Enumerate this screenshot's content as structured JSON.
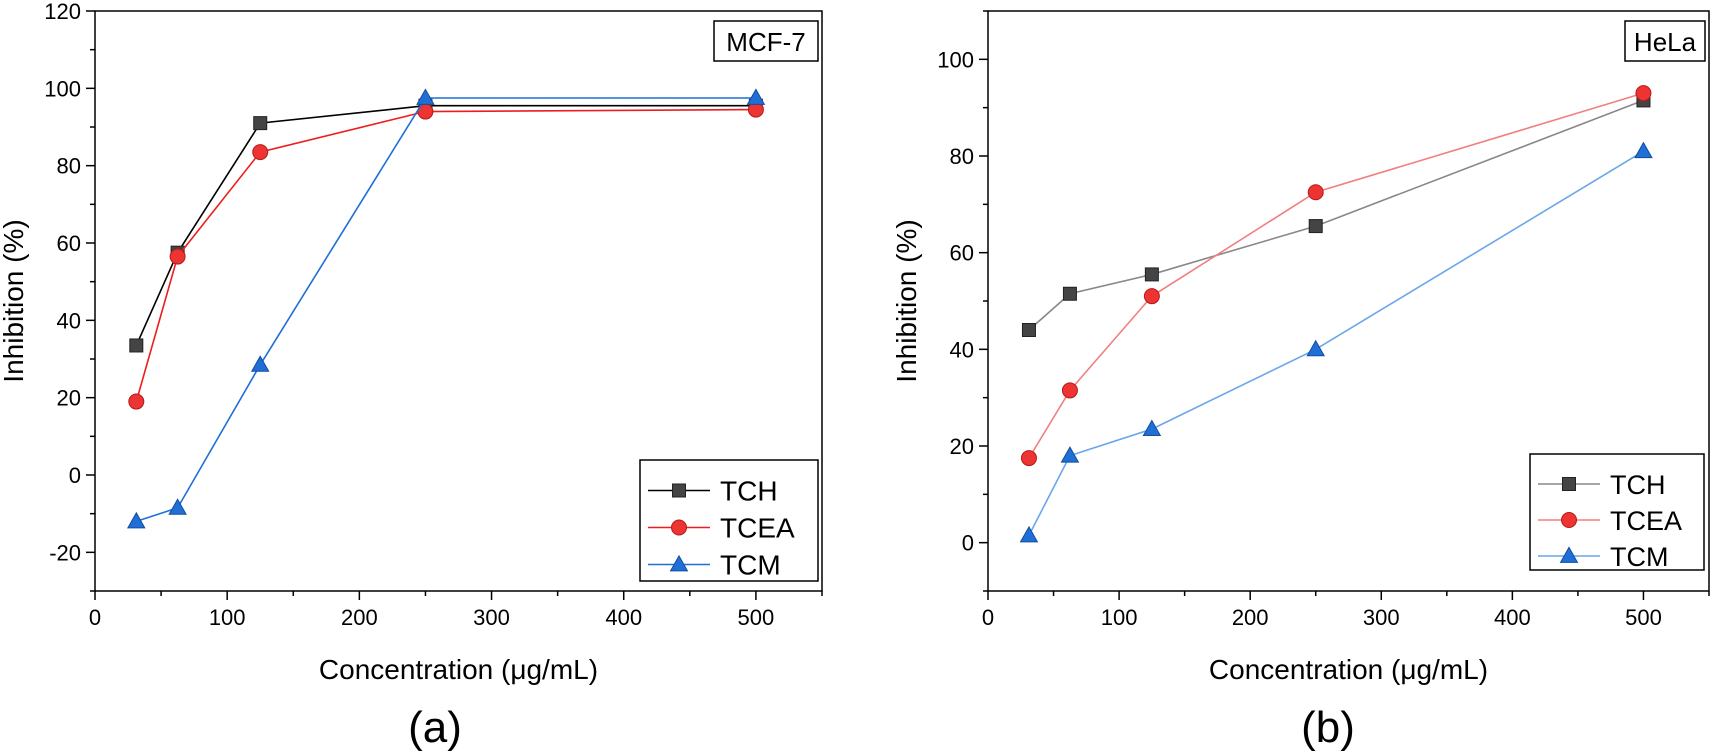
{
  "chart_data": [
    {
      "type": "line",
      "panel_label": "(a)",
      "cell_line": "MCF-7",
      "xlabel": "Concentration (μg/mL)",
      "ylabel": "Inhibition (%)",
      "xlim": [
        0,
        550
      ],
      "ylim": [
        -30,
        120
      ],
      "xticks": [
        0,
        100,
        200,
        300,
        400,
        500
      ],
      "yticks": [
        -20,
        0,
        20,
        40,
        60,
        80,
        100,
        120
      ],
      "legend_position": "bottom-right",
      "x": [
        31.25,
        62.5,
        125,
        250,
        500
      ],
      "series": [
        {
          "name": "TCH",
          "marker": "square",
          "color": "#444444",
          "line_color": "#000000",
          "values": [
            33.5,
            57.5,
            91,
            95.5,
            95.5
          ]
        },
        {
          "name": "TCEA",
          "marker": "circle",
          "color": "#ee3333",
          "line_color": "#ee1c1c",
          "values": [
            19,
            56.5,
            83.5,
            94,
            94.5
          ]
        },
        {
          "name": "TCM",
          "marker": "triangle",
          "color": "#1f6fd6",
          "line_color": "#1f6fd6",
          "values": [
            -12,
            -8.5,
            28.5,
            97.5,
            97.5
          ]
        }
      ]
    },
    {
      "type": "line",
      "panel_label": "(b)",
      "cell_line": "HeLa",
      "xlabel": "Concentration (μg/mL)",
      "ylabel": "Inhibition (%)",
      "xlim": [
        0,
        550
      ],
      "ylim": [
        -10,
        110
      ],
      "xticks": [
        0,
        100,
        200,
        300,
        400,
        500
      ],
      "yticks": [
        0,
        20,
        40,
        60,
        80,
        100
      ],
      "legend_position": "bottom-right",
      "x": [
        31.25,
        62.5,
        125,
        250,
        500
      ],
      "series": [
        {
          "name": "TCH",
          "marker": "square",
          "color": "#444444",
          "line_color": "#888888",
          "values": [
            44,
            51.5,
            55.5,
            65.5,
            91.5
          ]
        },
        {
          "name": "TCEA",
          "marker": "circle",
          "color": "#ee3333",
          "line_color": "#f08080",
          "values": [
            17.5,
            31.5,
            51,
            72.5,
            93
          ]
        },
        {
          "name": "TCM",
          "marker": "triangle",
          "color": "#1f6fd6",
          "line_color": "#6aa6ec",
          "values": [
            1.5,
            18,
            23.5,
            40,
            81
          ]
        }
      ]
    }
  ]
}
